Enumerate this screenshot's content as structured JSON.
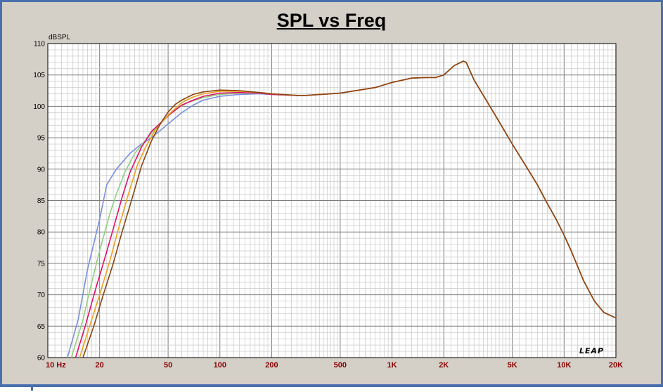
{
  "chart_data": {
    "type": "line",
    "title": "SPL vs Freq",
    "ylabel": "dBSPL",
    "xlabel": "",
    "xscale": "log",
    "xlim": [
      10,
      20000
    ],
    "ylim": [
      60,
      110
    ],
    "y_ticks": [
      "110",
      "105",
      "100",
      "95",
      "90",
      "85",
      "80",
      "75",
      "70",
      "65",
      "60"
    ],
    "x_ticks": [
      {
        "value": 10,
        "label": "10  Hz"
      },
      {
        "value": 20,
        "label": "20"
      },
      {
        "value": 50,
        "label": "50"
      },
      {
        "value": 100,
        "label": "100"
      },
      {
        "value": 200,
        "label": "200"
      },
      {
        "value": 500,
        "label": "500"
      },
      {
        "value": 1000,
        "label": "1K"
      },
      {
        "value": 2000,
        "label": "2K"
      },
      {
        "value": 5000,
        "label": "5K"
      },
      {
        "value": 10000,
        "label": "10K"
      },
      {
        "value": 20000,
        "label": "20K"
      }
    ],
    "grid": true,
    "watermark": "LEAP",
    "series": [
      {
        "color": "#7b8ee0",
        "points": [
          [
            13,
            60
          ],
          [
            15,
            66
          ],
          [
            17,
            74
          ],
          [
            20,
            82
          ],
          [
            22,
            87.5
          ],
          [
            25,
            90
          ],
          [
            30,
            92.5
          ],
          [
            35,
            94
          ],
          [
            40,
            95
          ],
          [
            50,
            97.2
          ],
          [
            60,
            99
          ],
          [
            70,
            100.2
          ],
          [
            80,
            101
          ],
          [
            100,
            101.6
          ],
          [
            130,
            101.9
          ],
          [
            170,
            102
          ],
          [
            200,
            101.9
          ],
          [
            300,
            101.7
          ],
          [
            500,
            102.1
          ],
          [
            800,
            103
          ],
          [
            1000,
            103.8
          ],
          [
            1300,
            104.5
          ],
          [
            1600,
            104.6
          ],
          [
            1800,
            104.6
          ],
          [
            2000,
            105
          ],
          [
            2300,
            106.5
          ],
          [
            2600,
            107.2
          ],
          [
            2700,
            107
          ],
          [
            3000,
            104.2
          ],
          [
            4000,
            98.5
          ],
          [
            5000,
            94
          ],
          [
            6000,
            90.5
          ],
          [
            7000,
            87.5
          ],
          [
            8000,
            84.5
          ],
          [
            9000,
            82
          ],
          [
            10000,
            79.5
          ],
          [
            11000,
            77
          ],
          [
            12000,
            74.5
          ],
          [
            13000,
            72.2
          ],
          [
            15000,
            69
          ],
          [
            17000,
            67.2
          ],
          [
            20000,
            66.3
          ]
        ]
      },
      {
        "color": "#90d080",
        "points": [
          [
            13.7,
            60
          ],
          [
            16,
            66
          ],
          [
            18,
            72
          ],
          [
            20,
            77
          ],
          [
            23,
            83
          ],
          [
            25,
            86
          ],
          [
            28,
            89.5
          ],
          [
            32,
            92.5
          ],
          [
            38,
            95
          ],
          [
            45,
            97.3
          ],
          [
            55,
            99.5
          ],
          [
            65,
            100.6
          ],
          [
            80,
            101.4
          ],
          [
            100,
            101.9
          ],
          [
            130,
            102.1
          ],
          [
            170,
            102.1
          ],
          [
            200,
            101.9
          ],
          [
            300,
            101.7
          ],
          [
            500,
            102.1
          ],
          [
            800,
            103
          ],
          [
            1000,
            103.8
          ],
          [
            1300,
            104.5
          ],
          [
            1600,
            104.6
          ],
          [
            1800,
            104.6
          ],
          [
            2000,
            105
          ],
          [
            2300,
            106.5
          ],
          [
            2600,
            107.2
          ],
          [
            2700,
            107
          ],
          [
            3000,
            104.2
          ],
          [
            4000,
            98.5
          ],
          [
            5000,
            94
          ],
          [
            6000,
            90.5
          ],
          [
            7000,
            87.5
          ],
          [
            8000,
            84.5
          ],
          [
            9000,
            82
          ],
          [
            10000,
            79.5
          ],
          [
            11000,
            77
          ],
          [
            12000,
            74.5
          ],
          [
            13000,
            72.2
          ],
          [
            15000,
            69
          ],
          [
            17000,
            67.2
          ],
          [
            20000,
            66.3
          ]
        ]
      },
      {
        "color": "#e0106a",
        "points": [
          [
            14.5,
            60
          ],
          [
            16.5,
            65
          ],
          [
            19,
            71
          ],
          [
            21,
            75
          ],
          [
            24,
            80.5
          ],
          [
            27,
            85.5
          ],
          [
            30,
            89.5
          ],
          [
            35,
            93.5
          ],
          [
            40,
            96
          ],
          [
            50,
            98.5
          ],
          [
            60,
            100.2
          ],
          [
            70,
            101
          ],
          [
            80,
            101.6
          ],
          [
            100,
            102.1
          ],
          [
            130,
            102.2
          ],
          [
            170,
            102.1
          ],
          [
            200,
            101.9
          ],
          [
            300,
            101.7
          ],
          [
            500,
            102.1
          ],
          [
            800,
            103
          ],
          [
            1000,
            103.8
          ],
          [
            1300,
            104.5
          ],
          [
            1600,
            104.6
          ],
          [
            1800,
            104.6
          ],
          [
            2000,
            105
          ],
          [
            2300,
            106.5
          ],
          [
            2600,
            107.2
          ],
          [
            2700,
            107
          ],
          [
            3000,
            104.2
          ],
          [
            4000,
            98.5
          ],
          [
            5000,
            94
          ],
          [
            6000,
            90.5
          ],
          [
            7000,
            87.5
          ],
          [
            8000,
            84.5
          ],
          [
            9000,
            82
          ],
          [
            10000,
            79.5
          ],
          [
            11000,
            77
          ],
          [
            12000,
            74.5
          ],
          [
            13000,
            72.2
          ],
          [
            15000,
            69
          ],
          [
            17000,
            67.2
          ],
          [
            20000,
            66.3
          ]
        ]
      },
      {
        "color": "#f0a020",
        "points": [
          [
            15.3,
            60
          ],
          [
            17.5,
            65
          ],
          [
            20,
            70
          ],
          [
            23,
            75.5
          ],
          [
            26,
            81
          ],
          [
            29,
            85.5
          ],
          [
            33,
            90.5
          ],
          [
            37,
            93.5
          ],
          [
            42,
            96.2
          ],
          [
            50,
            98.6
          ],
          [
            60,
            100.6
          ],
          [
            70,
            101.5
          ],
          [
            80,
            102
          ],
          [
            100,
            102.4
          ],
          [
            130,
            102.4
          ],
          [
            170,
            102.2
          ],
          [
            200,
            102
          ],
          [
            300,
            101.7
          ],
          [
            500,
            102.1
          ],
          [
            800,
            103
          ],
          [
            1000,
            103.8
          ],
          [
            1300,
            104.5
          ],
          [
            1600,
            104.6
          ],
          [
            1800,
            104.6
          ],
          [
            2000,
            105
          ],
          [
            2300,
            106.5
          ],
          [
            2600,
            107.2
          ],
          [
            2700,
            107
          ],
          [
            3000,
            104.2
          ],
          [
            4000,
            98.5
          ],
          [
            5000,
            94
          ],
          [
            6000,
            90.5
          ],
          [
            7000,
            87.5
          ],
          [
            8000,
            84.5
          ],
          [
            9000,
            82
          ],
          [
            10000,
            79.5
          ],
          [
            11000,
            77
          ],
          [
            12000,
            74.5
          ],
          [
            13000,
            72.2
          ],
          [
            15000,
            69
          ],
          [
            17000,
            67.2
          ],
          [
            20000,
            66.3
          ]
        ]
      },
      {
        "color": "#8b4513",
        "points": [
          [
            16,
            60
          ],
          [
            18.5,
            65
          ],
          [
            21,
            70
          ],
          [
            24,
            75
          ],
          [
            27,
            80
          ],
          [
            31,
            85.5
          ],
          [
            35,
            90.5
          ],
          [
            40,
            94.5
          ],
          [
            45,
            97.2
          ],
          [
            50,
            99.1
          ],
          [
            55,
            100.3
          ],
          [
            60,
            101
          ],
          [
            70,
            101.9
          ],
          [
            80,
            102.3
          ],
          [
            100,
            102.6
          ],
          [
            130,
            102.5
          ],
          [
            170,
            102.2
          ],
          [
            200,
            102
          ],
          [
            300,
            101.7
          ],
          [
            500,
            102.1
          ],
          [
            800,
            103
          ],
          [
            1000,
            103.8
          ],
          [
            1300,
            104.5
          ],
          [
            1600,
            104.6
          ],
          [
            1800,
            104.6
          ],
          [
            2000,
            105
          ],
          [
            2300,
            106.5
          ],
          [
            2600,
            107.2
          ],
          [
            2700,
            107
          ],
          [
            3000,
            104.2
          ],
          [
            4000,
            98.5
          ],
          [
            5000,
            94
          ],
          [
            6000,
            90.5
          ],
          [
            7000,
            87.5
          ],
          [
            8000,
            84.5
          ],
          [
            9000,
            82
          ],
          [
            10000,
            79.5
          ],
          [
            11000,
            77
          ],
          [
            12000,
            74.5
          ],
          [
            13000,
            72.2
          ],
          [
            15000,
            69
          ],
          [
            17000,
            67.2
          ],
          [
            20000,
            66.3
          ]
        ]
      }
    ]
  }
}
